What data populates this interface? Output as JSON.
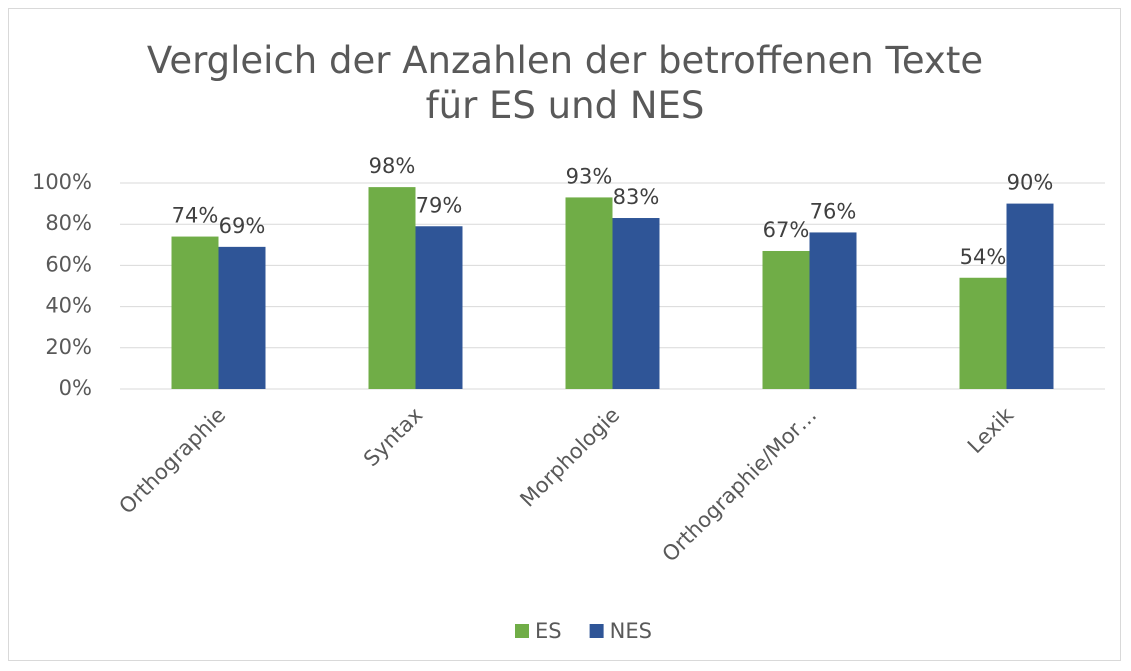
{
  "chart_data": {
    "type": "bar",
    "title": "Vergleich der Anzahlen der betroffenen Texte für ES und NES",
    "categories": [
      "Orthographie",
      "Syntax",
      "Morphologie",
      "Orthographie/Mor…",
      "Lexik"
    ],
    "series": [
      {
        "name": "ES",
        "color": "#70ad47",
        "values": [
          74,
          98,
          93,
          67,
          54
        ],
        "value_labels": [
          "74%",
          "98%",
          "93%",
          "67%",
          "54%"
        ]
      },
      {
        "name": "NES",
        "color": "#2f5597",
        "values": [
          69,
          79,
          83,
          76,
          90
        ],
        "value_labels": [
          "69%",
          "79%",
          "83%",
          "76%",
          "90%"
        ]
      }
    ],
    "ylim": [
      0,
      100
    ],
    "yticks": [
      {
        "value": 0,
        "label": "0%"
      },
      {
        "value": 20,
        "label": "20%"
      },
      {
        "value": 40,
        "label": "40%"
      },
      {
        "value": 60,
        "label": "60%"
      },
      {
        "value": 80,
        "label": "80%"
      },
      {
        "value": 100,
        "label": "100%"
      }
    ],
    "grid": true,
    "legend": "bottom"
  }
}
